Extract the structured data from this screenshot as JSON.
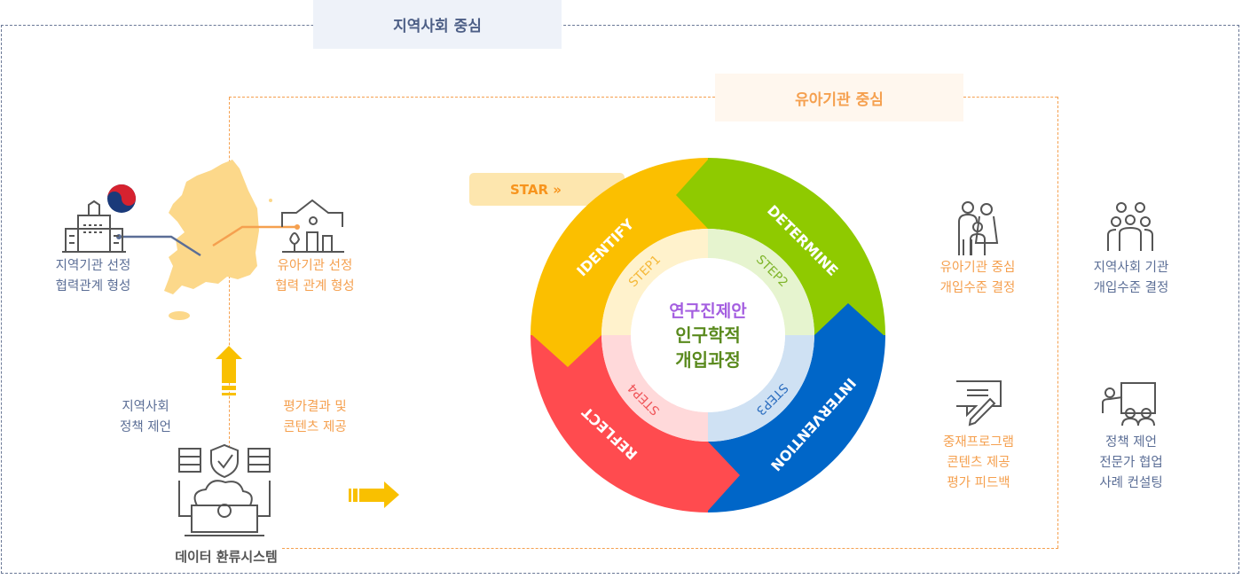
{
  "headers": {
    "community": "지역사회 중심",
    "institution": "유아기관 중심"
  },
  "left": {
    "local_agency": [
      "지역기관 선정",
      "협력관계 형성"
    ],
    "kid_agency": [
      "유아기관 선정",
      "협력 관계 형성"
    ],
    "policy": [
      "지역사회",
      "정책 제언"
    ],
    "feedback": [
      "평가결과 및",
      "콘텐츠 제공"
    ],
    "system": "데이터 환류시스템"
  },
  "cycle": {
    "start": "STAR »",
    "center": [
      "연구진제안",
      "인구학적",
      "개입과정"
    ],
    "stages": [
      {
        "name": "IDENTIFY",
        "step": "STEP1",
        "color": "#fbbf00",
        "inner": "#fff2cc",
        "step_color": "#f5b93a"
      },
      {
        "name": "DETERMINE",
        "step": "STEP2",
        "color": "#8fca00",
        "inner": "#e6f4cf",
        "step_color": "#7fb52a"
      },
      {
        "name": "INTERVENTION",
        "step": "STEP3",
        "color": "#0066c8",
        "inner": "#cfe1f3",
        "step_color": "#2e6fc0"
      },
      {
        "name": "REFLECT",
        "step": "STEP4",
        "color": "#ff4b4f",
        "inner": "#ffd9da",
        "step_color": "#f0565a"
      }
    ],
    "center_colors": {
      "top": "#a45ee0",
      "bottom": "#5a8a1e"
    }
  },
  "right": {
    "kid_level": [
      "유아기관 중심",
      "개입수준 결정"
    ],
    "community_level": [
      "지역사회 기관",
      "개입수준 결정"
    ],
    "program": [
      "중재프로그램",
      "콘텐츠 제공",
      "평가 피드백"
    ],
    "consult": [
      "정책 제언",
      "전문가 협업",
      "사례 컨설팅"
    ]
  },
  "colors": {
    "blue_text": "#5b6e96",
    "orange_text": "#f5a04f",
    "arrow": "#f9c000",
    "map": "#fcd88a"
  }
}
